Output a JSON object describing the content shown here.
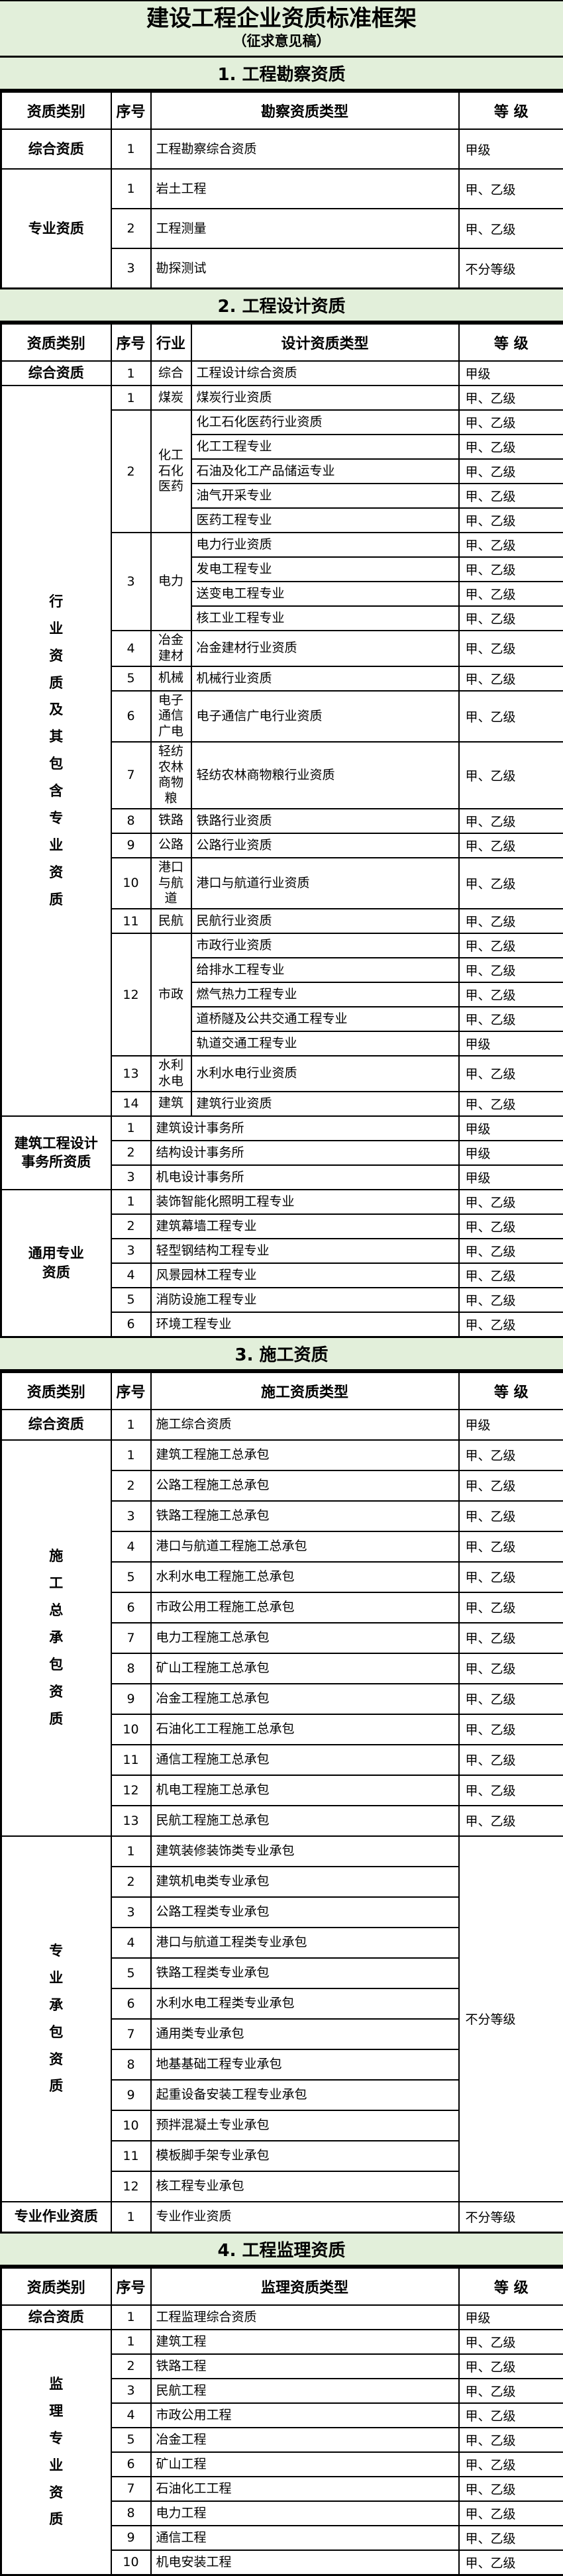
{
  "title": "建设工程企业资质标准框架",
  "subtitle": "（征求意见稿）",
  "colors": {
    "header_green": "#e2efda",
    "border": "#000000",
    "row_bg": "#ffffff",
    "text": "#000000"
  },
  "grades": {
    "jia": "甲级",
    "jia_yi": "甲、乙级",
    "no_grade": "不分等级"
  },
  "sections": [
    {
      "bar": "1. 工程勘察资质",
      "columns": [
        "资质类别",
        "序号",
        "勘察资质类型",
        "等  级"
      ],
      "groups": [
        {
          "category": "综合资质",
          "vertical": false,
          "items": [
            {
              "no": "1",
              "type": "工程勘察综合资质",
              "grade": "甲级"
            }
          ]
        },
        {
          "category": "专业资质",
          "vertical": false,
          "items": [
            {
              "no": "1",
              "type": "岩土工程",
              "grade": "甲、乙级"
            },
            {
              "no": "2",
              "type": "工程测量",
              "grade": "甲、乙级"
            },
            {
              "no": "3",
              "type": "勘探测试",
              "grade": "不分等级"
            }
          ]
        }
      ]
    },
    {
      "bar": "2. 工程设计资质",
      "columns": [
        "资质类别",
        "序号",
        "行业",
        "设计资质类型",
        "等  级"
      ],
      "groups": [
        {
          "category": "综合资质",
          "vertical": false,
          "items": [
            {
              "no": "1",
              "industry": "综合",
              "types": [
                {
                  "type": "工程设计综合资质",
                  "grade": "甲级"
                }
              ]
            }
          ]
        },
        {
          "category": "行业资质及其包含专业资质",
          "vertical": true,
          "items": [
            {
              "no": "1",
              "industry": "煤炭",
              "types": [
                {
                  "type": "煤炭行业资质",
                  "grade": "甲、乙级"
                }
              ]
            },
            {
              "no": "2",
              "industry": "化工石化医药",
              "types": [
                {
                  "type": "化工石化医药行业资质",
                  "grade": "甲、乙级"
                },
                {
                  "type": "化工工程专业",
                  "grade": "甲、乙级"
                },
                {
                  "type": "石油及化工产品储运专业",
                  "grade": "甲、乙级"
                },
                {
                  "type": "油气开采专业",
                  "grade": "甲、乙级"
                },
                {
                  "type": "医药工程专业",
                  "grade": "甲、乙级"
                }
              ]
            },
            {
              "no": "3",
              "industry": "电力",
              "types": [
                {
                  "type": "电力行业资质",
                  "grade": "甲、乙级"
                },
                {
                  "type": "发电工程专业",
                  "grade": "甲、乙级"
                },
                {
                  "type": "送变电工程专业",
                  "grade": "甲、乙级"
                },
                {
                  "type": "核工业工程专业",
                  "grade": "甲、乙级"
                }
              ]
            },
            {
              "no": "4",
              "industry": "冶金建材",
              "types": [
                {
                  "type": "冶金建材行业资质",
                  "grade": "甲、乙级"
                }
              ]
            },
            {
              "no": "5",
              "industry": "机械",
              "types": [
                {
                  "type": "机械行业资质",
                  "grade": "甲、乙级"
                }
              ]
            },
            {
              "no": "6",
              "industry": "电子通信广电",
              "types": [
                {
                  "type": "电子通信广电行业资质",
                  "grade": "甲、乙级"
                }
              ]
            },
            {
              "no": "7",
              "industry": "轻纺农林商物粮",
              "types": [
                {
                  "type": "轻纺农林商物粮行业资质",
                  "grade": "甲、乙级"
                }
              ]
            },
            {
              "no": "8",
              "industry": "铁路",
              "types": [
                {
                  "type": "铁路行业资质",
                  "grade": "甲、乙级"
                }
              ]
            },
            {
              "no": "9",
              "industry": "公路",
              "types": [
                {
                  "type": "公路行业资质",
                  "grade": "甲、乙级"
                }
              ]
            },
            {
              "no": "10",
              "industry": "港口与航道",
              "types": [
                {
                  "type": "港口与航道行业资质",
                  "grade": "甲、乙级"
                }
              ]
            },
            {
              "no": "11",
              "industry": "民航",
              "types": [
                {
                  "type": "民航行业资质",
                  "grade": "甲、乙级"
                }
              ]
            },
            {
              "no": "12",
              "industry": "市政",
              "types": [
                {
                  "type": "市政行业资质",
                  "grade": "甲、乙级"
                },
                {
                  "type": "给排水工程专业",
                  "grade": "甲、乙级"
                },
                {
                  "type": "燃气热力工程专业",
                  "grade": "甲、乙级"
                },
                {
                  "type": "道桥隧及公共交通工程专业",
                  "grade": "甲、乙级"
                },
                {
                  "type": "轨道交通工程专业",
                  "grade": "甲级"
                }
              ]
            },
            {
              "no": "13",
              "industry": "水利水电",
              "types": [
                {
                  "type": "水利水电行业资质",
                  "grade": "甲、乙级"
                }
              ]
            },
            {
              "no": "14",
              "industry": "建筑",
              "types": [
                {
                  "type": "建筑行业资质",
                  "grade": "甲、乙级"
                }
              ]
            }
          ]
        },
        {
          "category": "建筑工程设计\n事务所资质",
          "vertical": false,
          "items": [
            {
              "no": "1",
              "industry": null,
              "types": [
                {
                  "type": "建筑设计事务所",
                  "grade": "甲级"
                }
              ]
            },
            {
              "no": "2",
              "industry": null,
              "types": [
                {
                  "type": "结构设计事务所",
                  "grade": "甲级"
                }
              ]
            },
            {
              "no": "3",
              "industry": null,
              "types": [
                {
                  "type": "机电设计事务所",
                  "grade": "甲级"
                }
              ]
            }
          ]
        },
        {
          "category": "通用专业\n资质",
          "vertical": false,
          "items": [
            {
              "no": "1",
              "industry": null,
              "types": [
                {
                  "type": "装饰智能化照明工程专业",
                  "grade": "甲、乙级"
                }
              ]
            },
            {
              "no": "2",
              "industry": null,
              "types": [
                {
                  "type": "建筑幕墙工程专业",
                  "grade": "甲、乙级"
                }
              ]
            },
            {
              "no": "3",
              "industry": null,
              "types": [
                {
                  "type": "轻型钢结构工程专业",
                  "grade": "甲、乙级"
                }
              ]
            },
            {
              "no": "4",
              "industry": null,
              "types": [
                {
                  "type": "风景园林工程专业",
                  "grade": "甲、乙级"
                }
              ]
            },
            {
              "no": "5",
              "industry": null,
              "types": [
                {
                  "type": "消防设施工程专业",
                  "grade": "甲、乙级"
                }
              ]
            },
            {
              "no": "6",
              "industry": null,
              "types": [
                {
                  "type": "环境工程专业",
                  "grade": "甲、乙级"
                }
              ]
            }
          ]
        }
      ]
    },
    {
      "bar": "3. 施工资质",
      "columns": [
        "资质类别",
        "序号",
        "施工资质类型",
        "等  级"
      ],
      "groups": [
        {
          "category": "综合资质",
          "vertical": false,
          "items": [
            {
              "no": "1",
              "type": "施工综合资质",
              "grade": "甲级"
            }
          ]
        },
        {
          "category": "施工总承包资质",
          "vertical": true,
          "items": [
            {
              "no": "1",
              "type": "建筑工程施工总承包",
              "grade": "甲、乙级"
            },
            {
              "no": "2",
              "type": "公路工程施工总承包",
              "grade": "甲、乙级"
            },
            {
              "no": "3",
              "type": "铁路工程施工总承包",
              "grade": "甲、乙级"
            },
            {
              "no": "4",
              "type": "港口与航道工程施工总承包",
              "grade": "甲、乙级"
            },
            {
              "no": "5",
              "type": "水利水电工程施工总承包",
              "grade": "甲、乙级"
            },
            {
              "no": "6",
              "type": "市政公用工程施工总承包",
              "grade": "甲、乙级"
            },
            {
              "no": "7",
              "type": "电力工程施工总承包",
              "grade": "甲、乙级"
            },
            {
              "no": "8",
              "type": "矿山工程施工总承包",
              "grade": "甲、乙级"
            },
            {
              "no": "9",
              "type": "冶金工程施工总承包",
              "grade": "甲、乙级"
            },
            {
              "no": "10",
              "type": "石油化工工程施工总承包",
              "grade": "甲、乙级"
            },
            {
              "no": "11",
              "type": "通信工程施工总承包",
              "grade": "甲、乙级"
            },
            {
              "no": "12",
              "type": "机电工程施工总承包",
              "grade": "甲、乙级"
            },
            {
              "no": "13",
              "type": "民航工程施工总承包",
              "grade": "甲、乙级"
            }
          ]
        },
        {
          "category": "专业承包资质",
          "vertical": true,
          "merged_grade": "不分等级",
          "items": [
            {
              "no": "1",
              "type": "建筑装修装饰类专业承包"
            },
            {
              "no": "2",
              "type": "建筑机电类专业承包"
            },
            {
              "no": "3",
              "type": "公路工程类专业承包"
            },
            {
              "no": "4",
              "type": "港口与航道工程类专业承包"
            },
            {
              "no": "5",
              "type": "铁路工程类专业承包"
            },
            {
              "no": "6",
              "type": "水利水电工程类专业承包"
            },
            {
              "no": "7",
              "type": "通用类专业承包"
            },
            {
              "no": "8",
              "type": "地基基础工程专业承包"
            },
            {
              "no": "9",
              "type": "起重设备安装工程专业承包"
            },
            {
              "no": "10",
              "type": "预拌混凝土专业承包"
            },
            {
              "no": "11",
              "type": "模板脚手架专业承包"
            },
            {
              "no": "12",
              "type": "核工程专业承包"
            }
          ]
        },
        {
          "category": "专业作业资质",
          "vertical": false,
          "items": [
            {
              "no": "1",
              "type": "专业作业资质",
              "grade": "不分等级"
            }
          ]
        }
      ]
    },
    {
      "bar": "4. 工程监理资质",
      "columns": [
        "资质类别",
        "序号",
        "监理资质类型",
        "等  级"
      ],
      "groups": [
        {
          "category": "综合资质",
          "vertical": false,
          "items": [
            {
              "no": "1",
              "type": "工程监理综合资质",
              "grade": "甲级"
            }
          ]
        },
        {
          "category": "监理专业资质",
          "vertical": true,
          "items": [
            {
              "no": "1",
              "type": "建筑工程",
              "grade": "甲、乙级"
            },
            {
              "no": "2",
              "type": "铁路工程",
              "grade": "甲、乙级"
            },
            {
              "no": "3",
              "type": "民航工程",
              "grade": "甲、乙级"
            },
            {
              "no": "4",
              "type": "市政公用工程",
              "grade": "甲、乙级"
            },
            {
              "no": "5",
              "type": "冶金工程",
              "grade": "甲、乙级"
            },
            {
              "no": "6",
              "type": "矿山工程",
              "grade": "甲、乙级"
            },
            {
              "no": "7",
              "type": "石油化工工程",
              "grade": "甲、乙级"
            },
            {
              "no": "8",
              "type": "电力工程",
              "grade": "甲、乙级"
            },
            {
              "no": "9",
              "type": "通信工程",
              "grade": "甲、乙级"
            },
            {
              "no": "10",
              "type": "机电安装工程",
              "grade": "甲、乙级"
            }
          ]
        }
      ]
    }
  ]
}
